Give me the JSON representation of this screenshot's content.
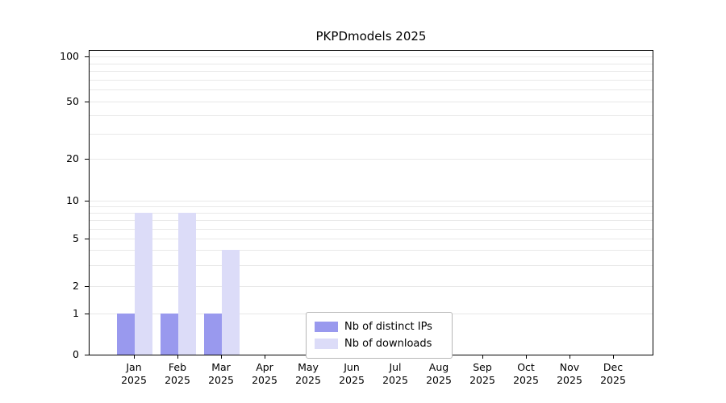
{
  "chart_data": {
    "type": "bar",
    "title": "PKPDmodels 2025",
    "categories": [
      "Jan 2025",
      "Feb 2025",
      "Mar 2025",
      "Apr 2025",
      "May 2025",
      "Jun 2025",
      "Jul 2025",
      "Aug 2025",
      "Sep 2025",
      "Oct 2025",
      "Nov 2025",
      "Dec 2025"
    ],
    "series": [
      {
        "name": "Nb of distinct IPs",
        "color": "#9999ee",
        "values": [
          1,
          1,
          1,
          0,
          0,
          0,
          0,
          0,
          0,
          0,
          0,
          0
        ]
      },
      {
        "name": "Nb of downloads",
        "color": "#dcdcf8",
        "values": [
          8,
          8,
          4,
          0,
          0,
          0,
          0,
          0,
          0,
          0,
          0,
          0
        ]
      }
    ],
    "y_ticks": [
      0,
      1,
      2,
      5,
      10,
      20,
      50,
      100
    ],
    "yscale": "log-like with zero baseline",
    "ylim": [
      0,
      120
    ],
    "xlabel": "",
    "ylabel": "",
    "grid": "horizontal minor gridlines",
    "legend_position": "lower center"
  }
}
